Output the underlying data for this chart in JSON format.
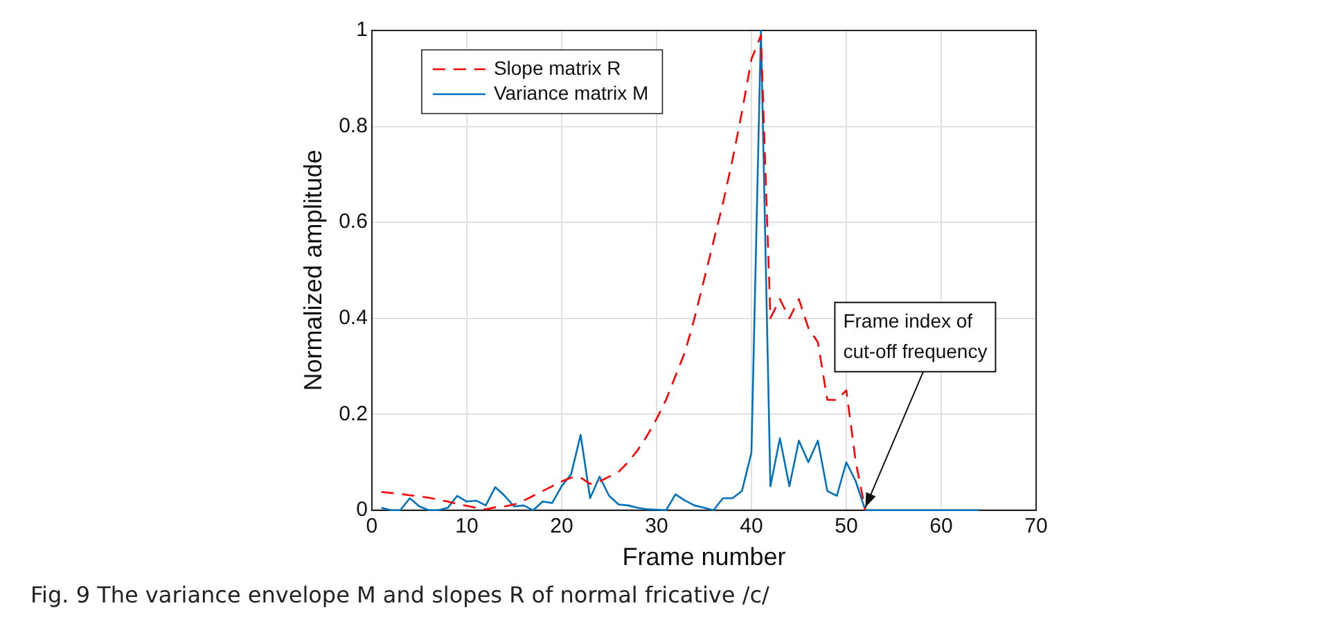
{
  "chart_data": {
    "type": "line",
    "xlabel": "Frame number",
    "ylabel": "Normalized amplitude",
    "x": [
      1,
      2,
      3,
      4,
      5,
      6,
      7,
      8,
      9,
      10,
      11,
      12,
      13,
      14,
      15,
      16,
      17,
      18,
      19,
      20,
      21,
      22,
      23,
      24,
      25,
      26,
      27,
      28,
      29,
      30,
      31,
      32,
      33,
      34,
      35,
      36,
      37,
      38,
      39,
      40,
      41,
      42,
      43,
      44,
      45,
      46,
      47,
      48,
      49,
      50,
      51,
      52,
      53,
      54,
      55,
      56,
      57,
      58,
      59,
      60,
      61,
      62,
      63,
      64
    ],
    "series": [
      {
        "name": "Slope matrix R",
        "color": "#ff0000",
        "line_style": "dashed",
        "values": [
          0.038,
          0.036,
          0.034,
          0.031,
          0.029,
          0.026,
          0.022,
          0.018,
          0.013,
          0.009,
          0.005,
          0.002,
          0.006,
          0.008,
          0.012,
          0.02,
          0.03,
          0.04,
          0.05,
          0.06,
          0.068,
          0.068,
          0.055,
          0.06,
          0.07,
          0.08,
          0.1,
          0.125,
          0.155,
          0.19,
          0.23,
          0.28,
          0.33,
          0.4,
          0.48,
          0.56,
          0.64,
          0.73,
          0.83,
          0.94,
          0.99,
          0.4,
          0.44,
          0.4,
          0.44,
          0.38,
          0.35,
          0.23,
          0.23,
          0.25,
          0.1,
          0,
          null,
          null,
          null,
          null,
          null,
          null,
          null,
          null,
          null,
          null,
          null,
          null
        ]
      },
      {
        "name": "Variance matrix M",
        "color": "#0072bd",
        "line_style": "solid",
        "values": [
          0.005,
          0,
          0,
          0.025,
          0.008,
          0,
          0,
          0.005,
          0.03,
          0.018,
          0.02,
          0.01,
          0.048,
          0.03,
          0.008,
          0.01,
          0,
          0.018,
          0.015,
          0.05,
          0.075,
          0.157,
          0.025,
          0.07,
          0.03,
          0.012,
          0.01,
          0.005,
          0.002,
          0.001,
          0,
          0.033,
          0.02,
          0.01,
          0.005,
          0,
          0.025,
          0.025,
          0.04,
          0.12,
          1,
          0.05,
          0.15,
          0.05,
          0.145,
          0.1,
          0.145,
          0.04,
          0.03,
          0.1,
          0.06,
          0,
          0,
          0,
          0,
          0,
          0,
          0,
          0,
          0,
          0,
          0,
          0,
          0
        ]
      }
    ],
    "xlim": [
      0,
      70
    ],
    "xticks": [
      0,
      10,
      20,
      30,
      40,
      50,
      60,
      70
    ],
    "ylim": [
      0,
      1
    ],
    "yticks": [
      0,
      0.2,
      0.4,
      0.6,
      0.8,
      1
    ],
    "grid": true,
    "legend": "top left",
    "marker": "none",
    "annotations": [
      {
        "text": "Frame index of\ncut-off frequency",
        "x": 52,
        "y": 0
      },
      "Fig. 9  The variance envelope M and slopes R of normal fricative /c/"
    ]
  }
}
